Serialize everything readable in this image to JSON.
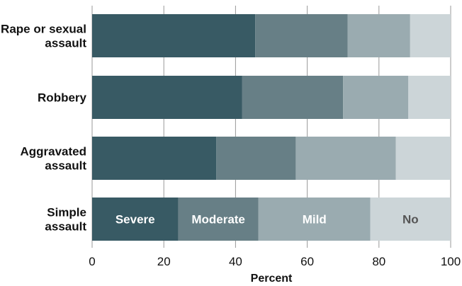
{
  "chart_data": {
    "type": "bar",
    "orientation": "horizontal",
    "stacked": true,
    "title": "",
    "xlabel": "Percent",
    "ylabel": "",
    "xlim": [
      0,
      100
    ],
    "x_ticks": [
      "0",
      "20",
      "40",
      "60",
      "80",
      "100"
    ],
    "grid": true,
    "categories": [
      [
        "Rape or sexual",
        "assault"
      ],
      [
        "Robbery"
      ],
      [
        "Aggravated",
        "assault"
      ],
      [
        "Simple",
        "assault"
      ]
    ],
    "series": [
      {
        "name": "Severe",
        "color": "#385a64",
        "label_color": "#ffffff",
        "values": [
          45.5,
          41.8,
          34.6,
          24.0
        ]
      },
      {
        "name": "Moderate",
        "color": "#677f86",
        "label_color": "#ffffff",
        "values": [
          25.8,
          28.2,
          22.2,
          22.4
        ]
      },
      {
        "name": "Mild",
        "color": "#9aabb0",
        "label_color": "#ffffff",
        "values": [
          17.4,
          18.2,
          27.9,
          31.2
        ]
      },
      {
        "name": "No",
        "color": "#ccd5d8",
        "label_color": "#555555",
        "values": [
          11.3,
          11.8,
          15.3,
          22.4
        ]
      }
    ],
    "in_bar_labels_on_category": 3,
    "gridline_color": "#999999"
  }
}
